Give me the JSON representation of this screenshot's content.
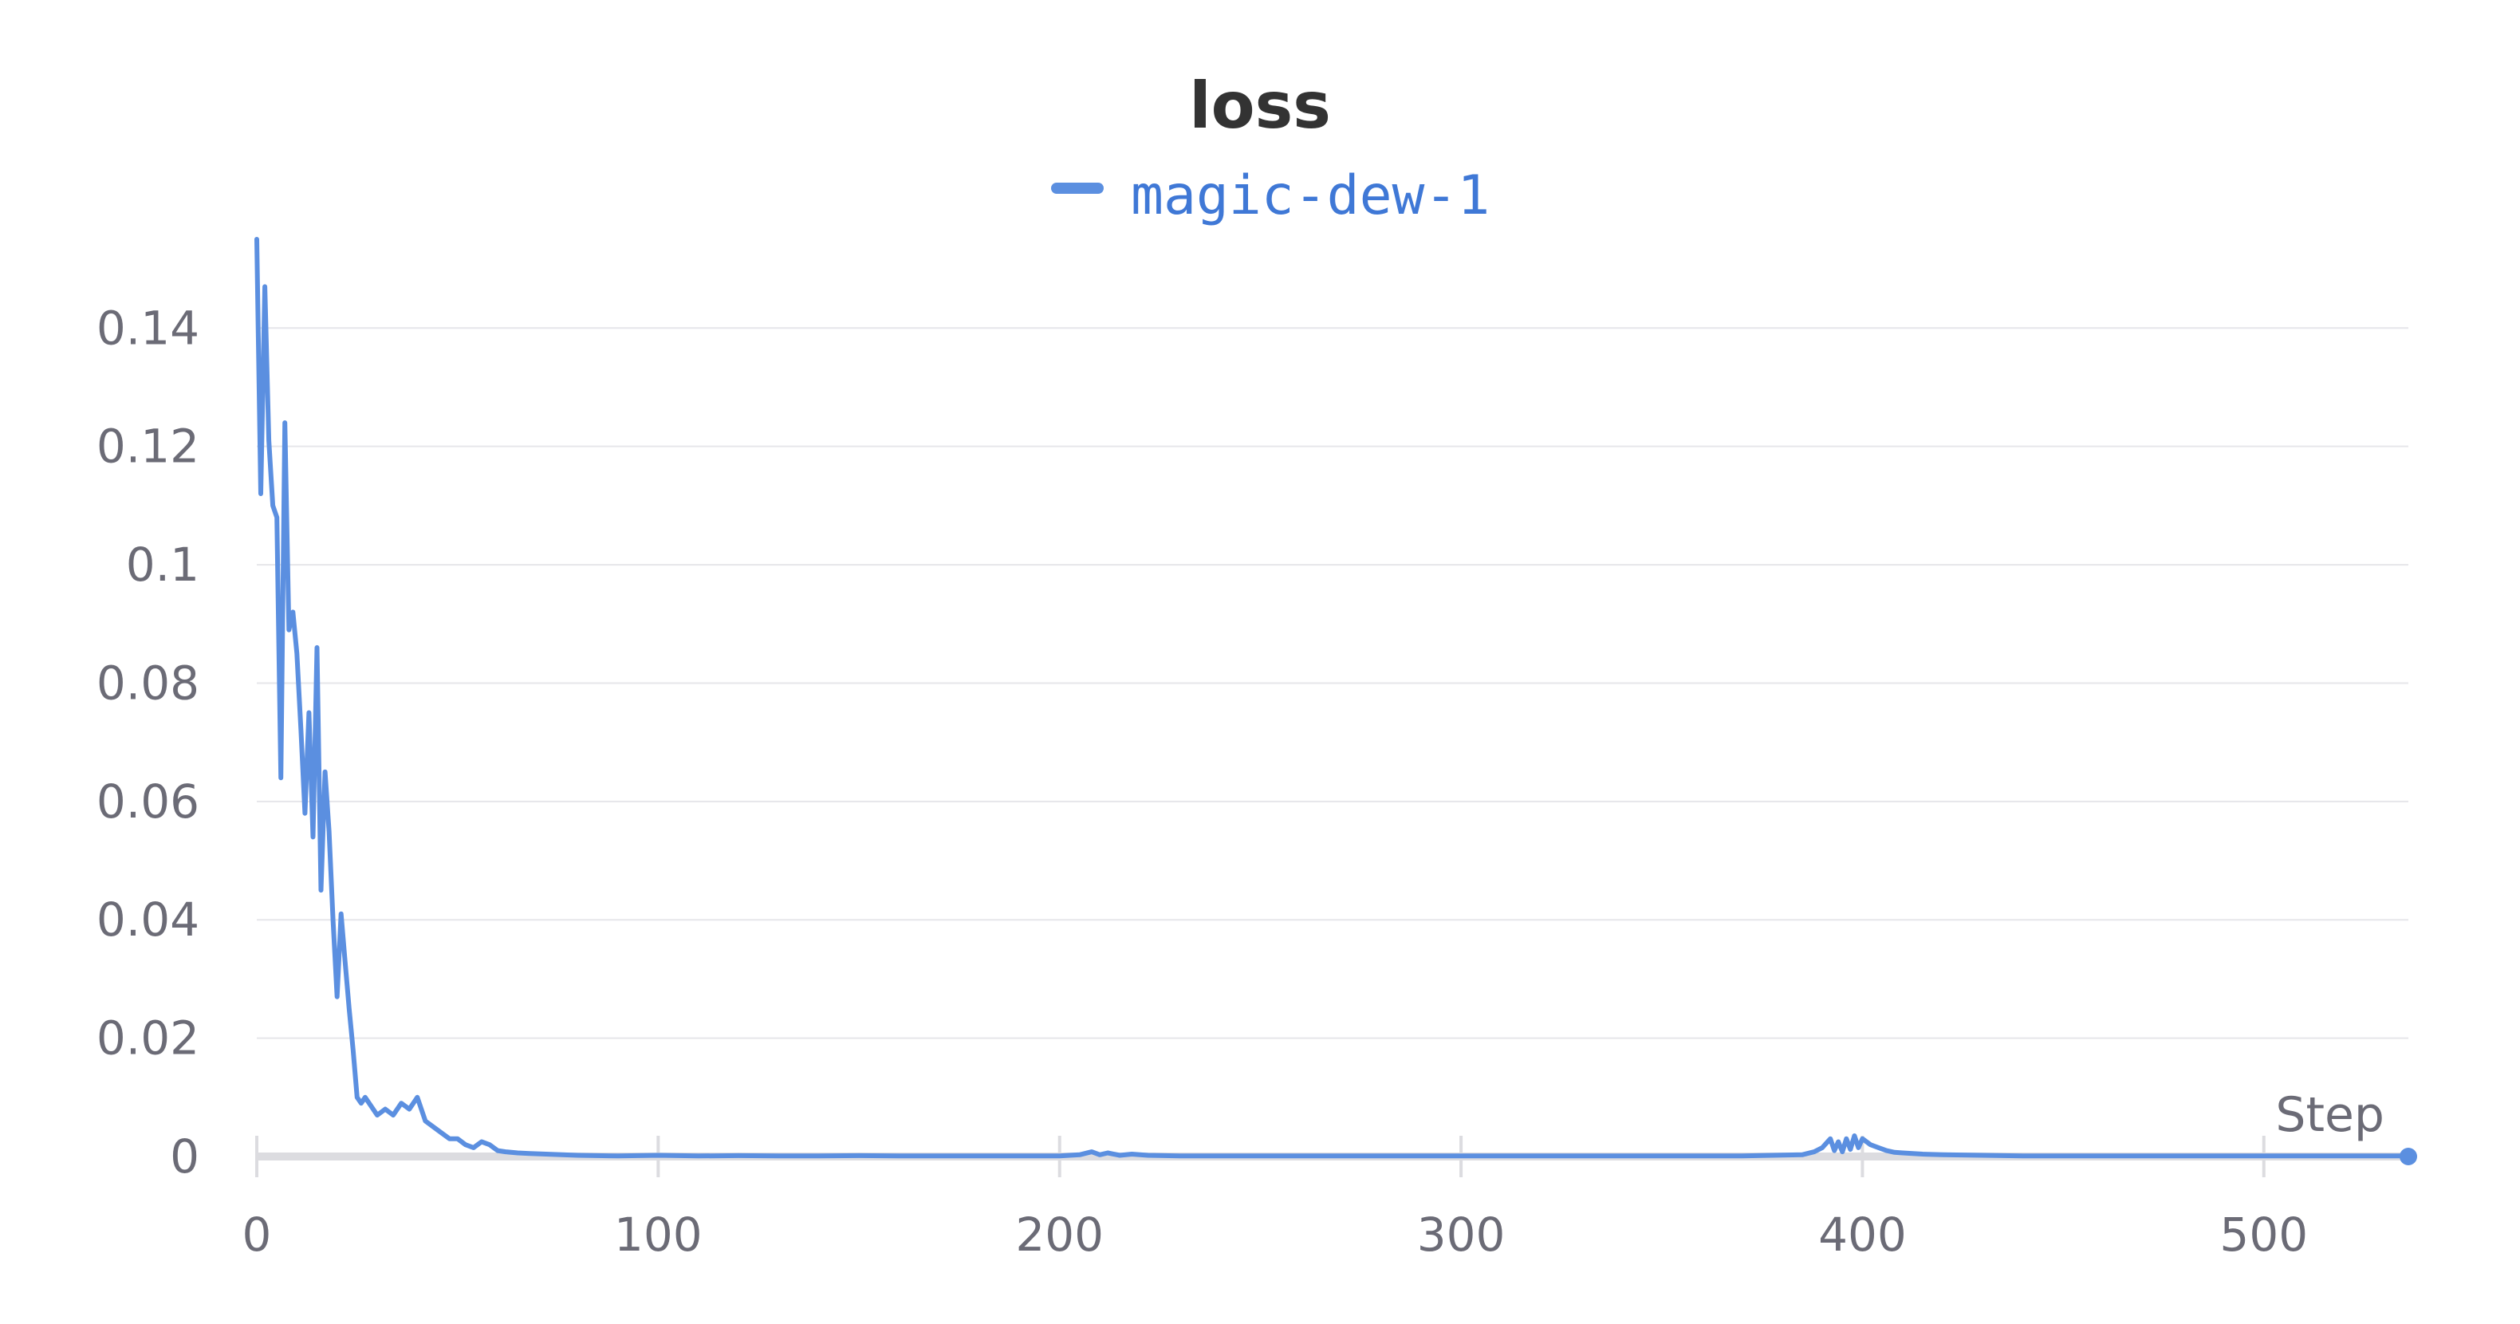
{
  "chart_data": {
    "type": "line",
    "title": "loss",
    "xlabel": "Step",
    "ylabel": "",
    "xlim": [
      0,
      536
    ],
    "ylim": [
      0,
      0.155
    ],
    "x_ticks": [
      0,
      100,
      200,
      300,
      400,
      500
    ],
    "x_tick_labels": [
      "0",
      "100",
      "200",
      "300",
      "400",
      "500"
    ],
    "y_ticks": [
      0,
      0.02,
      0.04,
      0.06,
      0.08,
      0.1,
      0.12,
      0.14
    ],
    "y_tick_labels": [
      "0",
      "0.02",
      "0.04",
      "0.06",
      "0.08",
      "0.1",
      "0.12",
      "0.14"
    ],
    "grid": true,
    "legend_position": "top-center",
    "colors": {
      "series": "#5b8fe0",
      "legend_text": "#3f78d6",
      "grid": "#e6e6ea",
      "axis": "#dcdce0",
      "tick_label": "#6b6b76",
      "title": "#333333"
    },
    "series": [
      {
        "name": "magic-dew-1",
        "x": [
          0,
          1,
          2,
          3,
          4,
          5,
          6,
          7,
          8,
          9,
          10,
          11,
          12,
          13,
          14,
          15,
          16,
          17,
          18,
          19,
          20,
          21,
          22,
          23,
          24,
          25,
          26,
          27,
          28,
          30,
          32,
          34,
          36,
          38,
          40,
          42,
          44,
          46,
          48,
          50,
          52,
          54,
          56,
          58,
          60,
          62,
          65,
          68,
          72,
          76,
          80,
          90,
          100,
          110,
          120,
          130,
          140,
          150,
          160,
          170,
          180,
          190,
          200,
          205,
          208,
          210,
          212,
          215,
          218,
          222,
          230,
          250,
          270,
          290,
          310,
          330,
          350,
          370,
          385,
          388,
          390,
          392,
          393,
          394,
          395,
          396,
          397,
          398,
          399,
          400,
          402,
          404,
          406,
          408,
          410,
          415,
          420,
          430,
          440,
          450,
          470,
          490,
          510,
          536
        ],
        "y": [
          0.155,
          0.112,
          0.147,
          0.121,
          0.11,
          0.108,
          0.064,
          0.124,
          0.089,
          0.092,
          0.085,
          0.072,
          0.058,
          0.075,
          0.054,
          0.086,
          0.045,
          0.065,
          0.055,
          0.04,
          0.027,
          0.041,
          0.033,
          0.025,
          0.018,
          0.01,
          0.009,
          0.01,
          0.009,
          0.007,
          0.008,
          0.007,
          0.009,
          0.008,
          0.01,
          0.006,
          0.005,
          0.004,
          0.003,
          0.003,
          0.002,
          0.0015,
          0.0025,
          0.002,
          0.001,
          0.0008,
          0.0006,
          0.0005,
          0.0004,
          0.0003,
          0.0002,
          0.0001,
          0.0002,
          0.0001,
          0.00015,
          0.0001,
          0.0001,
          0.00015,
          0.0001,
          0.0001,
          0.0001,
          0.0001,
          0.0001,
          0.0003,
          0.0008,
          0.0003,
          0.0006,
          0.0002,
          0.0004,
          0.0002,
          0.0001,
          0.0001,
          0.0001,
          0.0001,
          0.0001,
          0.0001,
          0.0001,
          0.0001,
          0.0003,
          0.0008,
          0.0015,
          0.003,
          0.001,
          0.0025,
          0.0008,
          0.003,
          0.0012,
          0.0035,
          0.0015,
          0.003,
          0.002,
          0.0015,
          0.001,
          0.0007,
          0.0006,
          0.0004,
          0.0003,
          0.0002,
          0.0001,
          0.0001,
          0.0001,
          0.0001,
          0.0001,
          0.0001
        ]
      }
    ]
  }
}
